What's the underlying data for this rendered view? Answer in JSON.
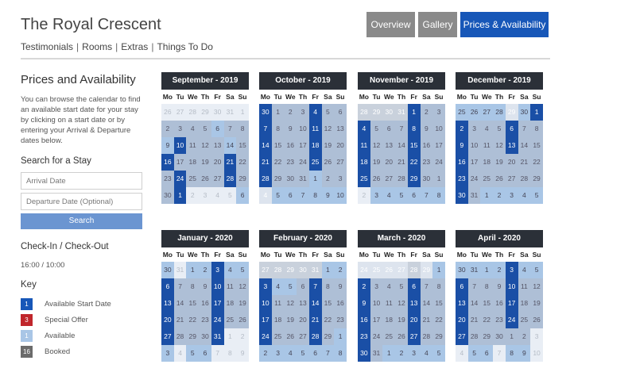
{
  "header": {
    "title": "The Royal Crescent",
    "subnav": [
      "Testimonials",
      "Rooms",
      "Extras",
      "Things To Do"
    ],
    "separator": "|",
    "tabs": [
      "Overview",
      "Gallery",
      "Prices & Availability"
    ]
  },
  "sidebar": {
    "heading": "Prices and Availability",
    "intro": "You can browse the calendar to find an available start date for your stay by clicking on a start date or by entering your Arrival & Departure dates below.",
    "search_heading": "Search for a Stay",
    "arrival_placeholder": "Arrival Date",
    "departure_placeholder": "Departure Date (Optional)",
    "search_button": "Search",
    "checkin_heading": "Check-In / Check-Out",
    "checkin_times": "16:00 / 10:00",
    "key_heading": "Key",
    "key": [
      {
        "sample": "1",
        "label": "Available Start Date",
        "color": "#1757b8"
      },
      {
        "sample": "3",
        "label": "Special Offer",
        "color": "#c0262c"
      },
      {
        "sample": "1",
        "label": "Available",
        "color": "#a9c6e6"
      },
      {
        "sample": "16",
        "label": "Booked",
        "color": "#6b6b6b"
      }
    ]
  },
  "weekdays": [
    "Mo",
    "Tu",
    "We",
    "Th",
    "Fr",
    "Sa",
    "Su"
  ],
  "calendars": [
    {
      "title": "September - 2019",
      "days": [
        "26",
        "27",
        "28",
        "29",
        "30",
        "31",
        "1",
        "2",
        "3",
        "4",
        "5",
        "6",
        "7",
        "8",
        "9",
        "10",
        "11",
        "12",
        "13",
        "14",
        "15",
        "16",
        "17",
        "18",
        "19",
        "20",
        "21",
        "22",
        "23",
        "24",
        "25",
        "26",
        "27",
        "28",
        "29",
        "30",
        "1",
        "2",
        "3",
        "4",
        "5",
        "6"
      ],
      "states": "XXXXXXXBBBBABBASBBBABSBBBBSBBSBBBSBBSXXXXAX"
    },
    {
      "title": "October - 2019",
      "days": [
        "30",
        "1",
        "2",
        "3",
        "4",
        "5",
        "6",
        "7",
        "8",
        "9",
        "10",
        "11",
        "12",
        "13",
        "14",
        "15",
        "16",
        "17",
        "18",
        "19",
        "20",
        "21",
        "22",
        "23",
        "24",
        "25",
        "26",
        "27",
        "28",
        "29",
        "30",
        "31",
        "1",
        "2",
        "3",
        "4",
        "5",
        "6",
        "7",
        "8",
        "9",
        "10"
      ],
      "states": "SBBBSBBSBBBSBBSBBBSBBSBBBSBBSBBBABBQAAAAAA"
    },
    {
      "title": "November - 2019",
      "days": [
        "28",
        "29",
        "30",
        "31",
        "1",
        "2",
        "3",
        "4",
        "5",
        "6",
        "7",
        "8",
        "9",
        "10",
        "11",
        "12",
        "13",
        "14",
        "15",
        "16",
        "17",
        "18",
        "19",
        "20",
        "21",
        "22",
        "23",
        "24",
        "25",
        "26",
        "27",
        "28",
        "29",
        "30",
        "1",
        "2",
        "3",
        "4",
        "5",
        "6",
        "7",
        "8"
      ],
      "states": "PPPPSBBSBBBSBBSBBBSBBSBBBSBBSBBBSBBXAAAAAA"
    },
    {
      "title": "December - 2019",
      "days": [
        "25",
        "26",
        "27",
        "28",
        "29",
        "30",
        "1",
        "2",
        "3",
        "4",
        "5",
        "6",
        "7",
        "8",
        "9",
        "10",
        "11",
        "12",
        "13",
        "14",
        "15",
        "16",
        "17",
        "18",
        "19",
        "20",
        "21",
        "22",
        "23",
        "24",
        "25",
        "26",
        "27",
        "28",
        "29",
        "30",
        "31",
        "1",
        "2",
        "3",
        "4",
        "5"
      ],
      "states": "AAAAQASSBBBSBBSBBBSBBSBBBBBBSBBBBBBSBAAAAA"
    },
    {
      "title": "January - 2020",
      "days": [
        "30",
        "31",
        "1",
        "2",
        "3",
        "4",
        "5",
        "6",
        "7",
        "8",
        "9",
        "10",
        "11",
        "12",
        "13",
        "14",
        "15",
        "16",
        "17",
        "18",
        "19",
        "20",
        "21",
        "22",
        "23",
        "24",
        "25",
        "26",
        "27",
        "28",
        "29",
        "30",
        "31",
        "1",
        "2",
        "3",
        "4",
        "5",
        "6",
        "7",
        "8",
        "9"
      ],
      "states": "AXAASAASBBBSBBSBBBSBBSBBBSBBSBBBSXXAXAAXXX"
    },
    {
      "title": "February - 2020",
      "days": [
        "27",
        "28",
        "29",
        "30",
        "31",
        "1",
        "2",
        "3",
        "4",
        "5",
        "6",
        "7",
        "8",
        "9",
        "10",
        "11",
        "12",
        "13",
        "14",
        "15",
        "16",
        "17",
        "18",
        "19",
        "20",
        "21",
        "22",
        "23",
        "24",
        "25",
        "26",
        "27",
        "28",
        "29",
        "1",
        "2",
        "3",
        "4",
        "5",
        "6",
        "7",
        "8"
      ],
      "states": "PPPPPAASAABSBBSBBBSBBSBBBSBBSBBBSBAAAAAAAA"
    },
    {
      "title": "March - 2020",
      "days": [
        "24",
        "25",
        "26",
        "27",
        "28",
        "29",
        "1",
        "2",
        "3",
        "4",
        "5",
        "6",
        "7",
        "8",
        "9",
        "10",
        "11",
        "12",
        "13",
        "14",
        "15",
        "16",
        "17",
        "18",
        "19",
        "20",
        "21",
        "22",
        "23",
        "24",
        "25",
        "26",
        "27",
        "28",
        "29",
        "30",
        "31",
        "1",
        "2",
        "3",
        "4",
        "5"
      ],
      "states": "QQQQPQASBBBSBBSBBBSBBSBBBSBBSBBBSBBSBAAAAA"
    },
    {
      "title": "April - 2020",
      "days": [
        "30",
        "31",
        "1",
        "2",
        "3",
        "4",
        "5",
        "6",
        "7",
        "8",
        "9",
        "10",
        "11",
        "12",
        "13",
        "14",
        "15",
        "16",
        "17",
        "18",
        "19",
        "20",
        "21",
        "22",
        "23",
        "24",
        "25",
        "26",
        "27",
        "28",
        "29",
        "30",
        "1",
        "2",
        "3",
        "4",
        "5",
        "6",
        "7",
        "8",
        "9",
        "10"
      ],
      "states": "AAAASAASBBBSBBSBBBSBBSBBBSBBSBBBBBXXAAXAAX"
    }
  ]
}
